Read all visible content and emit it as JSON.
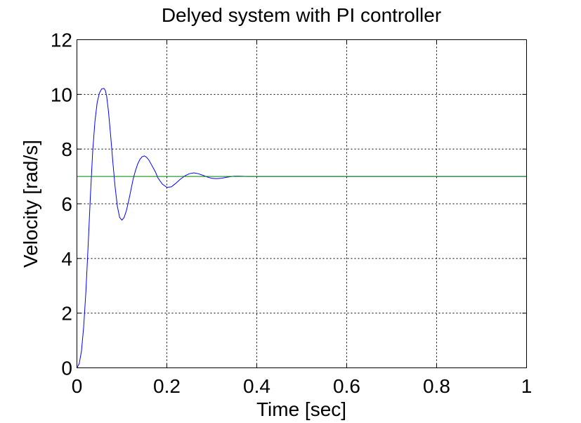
{
  "chart_data": {
    "type": "line",
    "title": "Delyed system with PI controller",
    "xlabel": "Time [sec]",
    "ylabel": "Velocity [rad/s]",
    "xlim": [
      0,
      1
    ],
    "ylim": [
      0,
      12
    ],
    "xticks": [
      0,
      0.2,
      0.4,
      0.6,
      0.8,
      1
    ],
    "xtick_labels": [
      "0",
      "0.2",
      "0.4",
      "0.6",
      "0.8",
      "1"
    ],
    "yticks": [
      0,
      2,
      4,
      6,
      8,
      10,
      12
    ],
    "ytick_labels": [
      "0",
      "2",
      "4",
      "6",
      "8",
      "10",
      "12"
    ],
    "grid": true,
    "series": [
      {
        "color": "#0000ff",
        "x": [
          0,
          0.005,
          0.01,
          0.015,
          0.02,
          0.025,
          0.03,
          0.035,
          0.04,
          0.045,
          0.05,
          0.055,
          0.06,
          0.063,
          0.066,
          0.07,
          0.075,
          0.08,
          0.085,
          0.09,
          0.095,
          0.1,
          0.105,
          0.11,
          0.115,
          0.12,
          0.125,
          0.13,
          0.135,
          0.14,
          0.145,
          0.15,
          0.155,
          0.16,
          0.165,
          0.17,
          0.175,
          0.18,
          0.19,
          0.2,
          0.21,
          0.22,
          0.23,
          0.24,
          0.25,
          0.26,
          0.27,
          0.28,
          0.29,
          0.3,
          0.31,
          0.32,
          0.33,
          0.34,
          0.35,
          0.36,
          0.38,
          0.4,
          0.42,
          0.45,
          0.5,
          0.55,
          0.6,
          0.65,
          0.7,
          0.75,
          0.8,
          0.85,
          0.9,
          0.95,
          1.0
        ],
        "y": [
          0,
          0.15,
          0.6,
          1.5,
          2.8,
          4.5,
          6.3,
          7.9,
          9.0,
          9.7,
          10.05,
          10.2,
          10.22,
          10.15,
          9.95,
          9.4,
          8.5,
          7.5,
          6.6,
          5.9,
          5.5,
          5.4,
          5.5,
          5.75,
          6.1,
          6.5,
          6.9,
          7.2,
          7.45,
          7.62,
          7.72,
          7.75,
          7.7,
          7.6,
          7.45,
          7.3,
          7.15,
          6.95,
          6.72,
          6.6,
          6.62,
          6.75,
          6.9,
          7.02,
          7.1,
          7.13,
          7.1,
          7.04,
          6.98,
          6.93,
          6.92,
          6.93,
          6.96,
          6.99,
          7.01,
          7.01,
          7.0,
          7.0,
          7.0,
          7.0,
          7.0,
          7.0,
          7.0,
          7.0,
          7.0,
          7.0,
          7.0,
          7.0,
          7.0,
          7.0,
          7.0
        ]
      },
      {
        "color": "#008000",
        "x": [
          0,
          1
        ],
        "y": [
          7,
          7
        ]
      }
    ]
  }
}
